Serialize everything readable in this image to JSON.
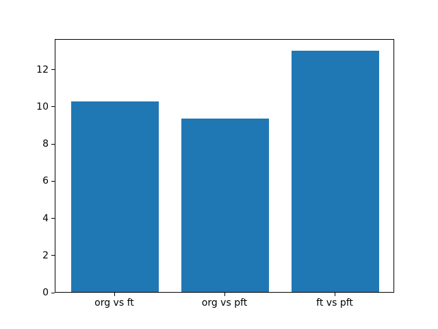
{
  "chart_data": {
    "type": "bar",
    "title": "",
    "xlabel": "",
    "ylabel": "",
    "categories": [
      "org vs ft",
      "org vs pft",
      "ft vs pft"
    ],
    "values": [
      10.25,
      9.35,
      13.0
    ],
    "bar_color": "#1f77b4",
    "bar_width_units": 0.8,
    "xlim": [
      -0.54,
      2.54
    ],
    "ylim": [
      0,
      13.65
    ],
    "yticks": [
      0,
      2,
      4,
      6,
      8,
      10,
      12
    ],
    "grid": false,
    "legend": null,
    "background_color": "#ffffff",
    "spine_color": "#000000"
  }
}
